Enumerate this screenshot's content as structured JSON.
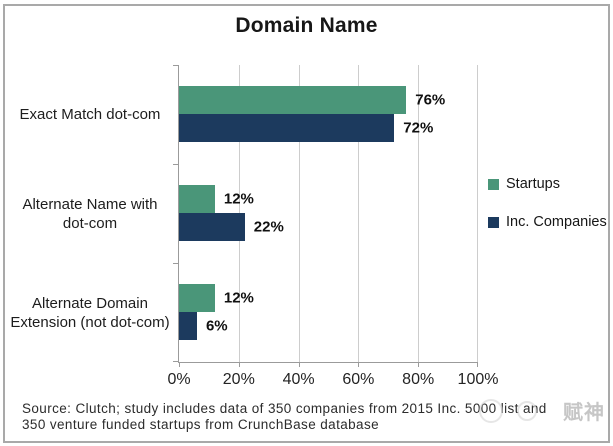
{
  "title": "Domain Name",
  "chart_data": {
    "type": "bar",
    "orientation": "horizontal",
    "title": "Domain Name",
    "categories": [
      "Exact Match dot-com",
      "Alternate Name with dot-com",
      "Alternate Domain Extension (not dot-com)"
    ],
    "series": [
      {
        "name": "Startups",
        "color": "#4a9679",
        "values": [
          76,
          12,
          12
        ]
      },
      {
        "name": "Inc. Companies",
        "color": "#1c3a5e",
        "values": [
          72,
          22,
          6
        ]
      }
    ],
    "value_labels": [
      [
        "76%",
        "72%"
      ],
      [
        "12%",
        "22%"
      ],
      [
        "12%",
        "6%"
      ]
    ],
    "xlim": [
      0,
      100
    ],
    "x_tick_labels": [
      "0%",
      "20%",
      "40%",
      "60%",
      "80%",
      "100%"
    ],
    "grid": true,
    "legend_position": "right",
    "colors": {
      "grid": "#cdcdcd",
      "axis": "#9b9b9b"
    }
  },
  "legend": {
    "items": [
      {
        "label": "Startups",
        "color": "#4a9679"
      },
      {
        "label": "Inc. Companies",
        "color": "#1c3a5e"
      }
    ]
  },
  "source": {
    "line1": "Source: Clutch; study includes data of 350 companies from 2015 Inc. 5000 list and",
    "line2": "350 venture funded startups from CrunchBase database"
  },
  "watermark": {
    "text": "赋神"
  }
}
